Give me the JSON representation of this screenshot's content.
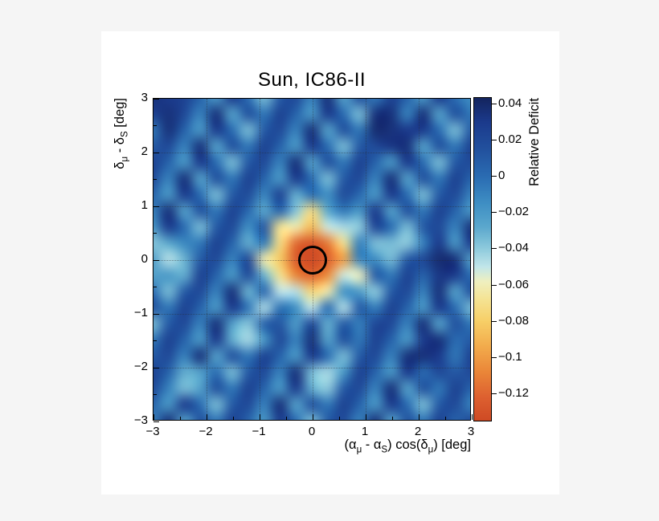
{
  "page": {
    "background_color": "#f5f5f5",
    "panel_color": "#ffffff"
  },
  "chart_data": {
    "type": "heatmap",
    "title": "Sun, IC86-II",
    "xlabel": "(αμ - αS) cos(δμ) [deg]",
    "ylabel": "δμ - δS [deg]",
    "colorbar_label": "Relative Deficit",
    "xlabel_parts": [
      {
        "t": "(α"
      },
      {
        "t": "μ",
        "sub": true
      },
      {
        "t": " - α"
      },
      {
        "t": "S",
        "sub": true
      },
      {
        "t": ") cos(δ"
      },
      {
        "t": "μ",
        "sub": true
      },
      {
        "t": ") [deg]"
      }
    ],
    "ylabel_parts": [
      {
        "t": "δ"
      },
      {
        "t": "μ",
        "sub": true
      },
      {
        "t": " - δ"
      },
      {
        "t": "S",
        "sub": true
      },
      {
        "t": " [deg]"
      }
    ],
    "xlim": [
      -3,
      3
    ],
    "ylim": [
      -3,
      3
    ],
    "x_ticks": [
      -3,
      -2,
      -1,
      0,
      1,
      2,
      3
    ],
    "x_tick_labels": [
      "−3",
      "−2",
      "−1",
      "0",
      "1",
      "2",
      "3"
    ],
    "y_ticks": [
      -3,
      -2,
      -1,
      0,
      1,
      2,
      3
    ],
    "y_tick_labels": [
      "−3",
      "−2",
      "−1",
      "0",
      "1",
      "2",
      "3"
    ],
    "grid": "dotted gridlines at integer values",
    "legend_position": "colorbar right",
    "colorbar_ticks": [
      0.04,
      0.02,
      0,
      -0.02,
      -0.04,
      -0.06,
      -0.08,
      -0.1,
      -0.12
    ],
    "colorbar_tick_labels": [
      "0.04",
      "0.02",
      "0",
      "−0.02",
      "−0.04",
      "−0.06",
      "−0.08",
      "−0.1",
      "−0.12"
    ],
    "color_scale_range": [
      -0.135,
      0.043
    ],
    "colormap": [
      [
        -0.135,
        "#ce4a24"
      ],
      [
        -0.122,
        "#dd6030"
      ],
      [
        -0.108,
        "#ea8638"
      ],
      [
        -0.094,
        "#f2ab4c"
      ],
      [
        -0.08,
        "#f7cf67"
      ],
      [
        -0.068,
        "#f5e393"
      ],
      [
        -0.058,
        "#eff0c0"
      ],
      [
        -0.05,
        "#c2e6ea"
      ],
      [
        -0.04,
        "#8fcbdd"
      ],
      [
        -0.028,
        "#5ba8cd"
      ],
      [
        -0.015,
        "#3f8fc4"
      ],
      [
        0.0,
        "#2a6cb2"
      ],
      [
        0.015,
        "#22519e"
      ],
      [
        0.03,
        "#1b3a8c"
      ],
      [
        0.043,
        "#14255f"
      ]
    ],
    "source_circle": {
      "x": 0,
      "y": 0,
      "radius_deg": 0.23,
      "color": "#000000"
    },
    "grid_x_range": [
      -3,
      3
    ],
    "grid_y_range": [
      3,
      -3
    ],
    "values": [
      [
        0.035,
        0.03,
        0.025,
        0.005,
        -0.02,
        0.03,
        0,
        -0.035,
        0.01,
        0.02,
        -0.01,
        0.035,
        -0.025,
        0.015,
        -0.005,
        0.025,
        0.005,
        -0.02,
        0.03,
        0,
        -0.015
      ],
      [
        0.025,
        0.035,
        0.02,
        -0.01,
        0.035,
        -0.025,
        0.015,
        -0.005,
        0.025,
        0.005,
        -0.02,
        0.03,
        0,
        -0.035,
        0.035,
        0.035,
        -0.01,
        0.035,
        -0.025,
        0.015,
        -0.005
      ],
      [
        -0.005,
        0.035,
        0.005,
        -0.02,
        0.03,
        0,
        -0.035,
        0.01,
        0.02,
        -0.01,
        0.035,
        -0.025,
        0.015,
        -0.005,
        0.038,
        0.035,
        0.03,
        0.03,
        0,
        -0.035,
        0.01
      ],
      [
        0.01,
        0.02,
        -0.01,
        0.035,
        -0.025,
        0.015,
        -0.005,
        0.025,
        0.005,
        -0.02,
        0.03,
        0,
        -0.035,
        0.01,
        0.02,
        0.032,
        0.035,
        -0.025,
        0.015,
        -0.005,
        0.025
      ],
      [
        0.025,
        0.005,
        -0.02,
        0.03,
        0,
        -0.035,
        0.01,
        0.02,
        -0.01,
        0.035,
        -0.025,
        0.015,
        -0.005,
        0.025,
        0.005,
        -0.02,
        0.03,
        0,
        -0.035,
        0.01,
        0.02
      ],
      [
        0.02,
        -0.01,
        0.035,
        -0.025,
        0.015,
        -0.005,
        0.025,
        0.005,
        -0.02,
        0.03,
        0,
        -0.035,
        0.01,
        0.02,
        -0.01,
        0.035,
        -0.025,
        0.015,
        -0.005,
        0.025,
        0.005
      ],
      [
        0.005,
        -0.02,
        0.03,
        0,
        -0.035,
        0.01,
        0.018,
        -0.012,
        0.025,
        -0.03,
        0,
        -0.015,
        0.018,
        0.002,
        -0.02,
        0.03,
        0,
        -0.035,
        0.01,
        0.02,
        -0.01
      ],
      [
        -0.01,
        0.035,
        -0.025,
        0.015,
        -0.005,
        0.025,
        0.002,
        -0.028,
        0.005,
        -0.038,
        -0.072,
        -0.028,
        -0.005,
        -0.02,
        0.03,
        -0.025,
        0.015,
        -0.005,
        0.025,
        0.005,
        -0.02
      ],
      [
        -0.02,
        0.03,
        0,
        -0.035,
        0.01,
        0.02,
        -0.016,
        0.012,
        -0.068,
        -0.062,
        -0.088,
        -0.052,
        -0.045,
        -0.04,
        0.022,
        0,
        -0.035,
        0.01,
        0.02,
        -0.01,
        0.035
      ],
      [
        -0.038,
        -0.028,
        -0.012,
        -0.005,
        0.025,
        0.005,
        -0.03,
        -0.006,
        -0.072,
        -0.118,
        -0.128,
        -0.112,
        -0.068,
        -0.008,
        -0.036,
        -0.035,
        -0.04,
        -0.01,
        0.03,
        -0.02,
        0.03
      ],
      [
        -0.022,
        -0.048,
        -0.032,
        0.01,
        0.02,
        -0.01,
        0.02,
        -0.062,
        -0.082,
        -0.125,
        -0.138,
        -0.122,
        -0.098,
        -0.01,
        -0.014,
        -0.035,
        0.01,
        0.02,
        0.038,
        0.035,
        -0.025
      ],
      [
        -0.025,
        -0.02,
        -0.03,
        0.025,
        0.005,
        -0.02,
        0.018,
        -0.032,
        -0.068,
        -0.108,
        -0.12,
        -0.105,
        -0.052,
        -0.058,
        0.01,
        -0.005,
        0.025,
        0.005,
        0.032,
        0.03,
        0
      ],
      [
        0,
        -0.035,
        0.01,
        0.02,
        -0.01,
        0.035,
        -0.032,
        0.004,
        -0.05,
        -0.048,
        -0.075,
        -0.062,
        -0.015,
        -0.022,
        -0.04,
        0.01,
        0.02,
        -0.01,
        0.035,
        -0.025,
        0.015
      ],
      [
        0.015,
        -0.005,
        0.025,
        0.005,
        -0.02,
        0.03,
        -0.004,
        -0.046,
        -0.002,
        -0.015,
        -0.05,
        0,
        -0.047,
        0.01,
        -0.008,
        0.025,
        0.005,
        -0.02,
        0.03,
        0,
        -0.035
      ],
      [
        -0.035,
        0.01,
        0.02,
        -0.01,
        0.035,
        -0.025,
        -0.038,
        0.006,
        0.012,
        -0.022,
        0.02,
        -0.03,
        0.01,
        -0.008,
        0.022,
        0.02,
        -0.01,
        0.035,
        -0.025,
        0.015,
        -0.005
      ],
      [
        -0.005,
        0.025,
        0.005,
        -0.02,
        0.03,
        -0.03,
        -0.045,
        -0.02,
        0.02,
        -0.01,
        0.035,
        -0.025,
        0.015,
        -0.005,
        0.025,
        0.005,
        -0.02,
        0.03,
        0.035,
        0,
        0.01
      ],
      [
        0.01,
        0.02,
        -0.01,
        0.035,
        -0.025,
        0.015,
        -0.005,
        0.025,
        0.005,
        -0.02,
        0.03,
        0,
        -0.035,
        0.01,
        0.02,
        -0.01,
        0.035,
        0.035,
        0.03,
        -0.005,
        0.025
      ],
      [
        0.025,
        0.005,
        -0.03,
        -0.025,
        0,
        -0.035,
        0.01,
        0.02,
        -0.01,
        0.035,
        -0.035,
        -0.045,
        -0.02,
        0.025,
        0.005,
        -0.02,
        0.03,
        0,
        0.02,
        0.01,
        0.02
      ],
      [
        0.02,
        -0.01,
        -0.035,
        -0.025,
        0.015,
        -0.005,
        0.025,
        0.005,
        -0.02,
        0.03,
        -0.03,
        -0.04,
        0.01,
        0.02,
        -0.01,
        0.035,
        -0.025,
        0.015,
        -0.005,
        0.025,
        0.005
      ],
      [
        0.005,
        -0.02,
        0.03,
        0,
        -0.035,
        0.01,
        0.02,
        -0.01,
        0.035,
        -0.025,
        0.015,
        -0.005,
        0.025,
        0.005,
        -0.02,
        0.03,
        0,
        -0.035,
        0.01,
        0.02,
        -0.01
      ],
      [
        -0.01,
        0.035,
        -0.025,
        0.015,
        -0.005,
        0.025,
        0.005,
        -0.02,
        0.03,
        0,
        -0.035,
        0.01,
        0.02,
        -0.01,
        0.035,
        -0.025,
        0.015,
        -0.005,
        0.025,
        0.005,
        0.02
      ]
    ]
  }
}
